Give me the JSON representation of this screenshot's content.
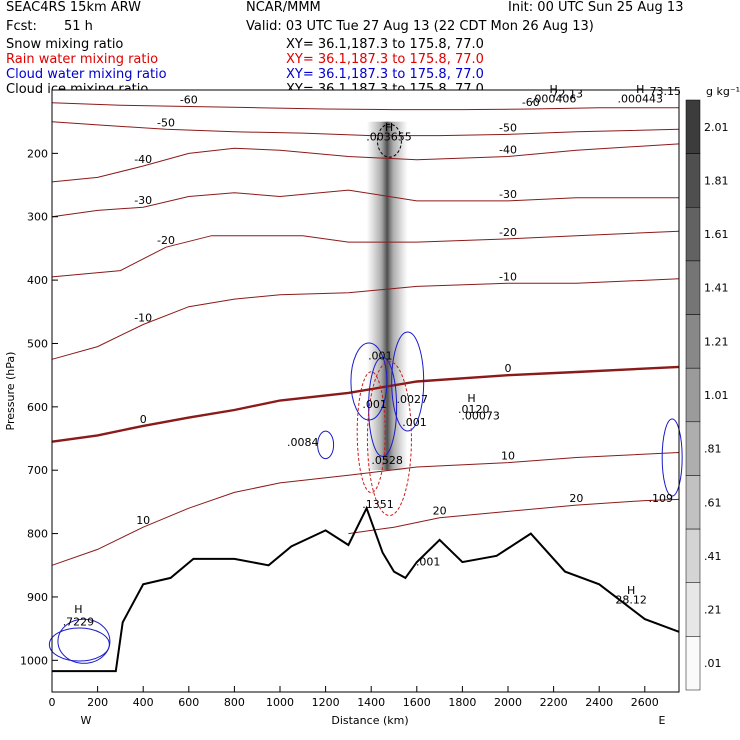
{
  "header": {
    "model": "SEAC4RS 15km ARW",
    "center": "NCAR/MMM",
    "init": "Init: 00 UTC Sun 25 Aug 13",
    "fcst_label": "Fcst:",
    "fcst_value": "51 h",
    "valid": "Valid: 03 UTC Tue 27 Aug 13 (22 CDT Mon 26 Aug 13)"
  },
  "fields": [
    {
      "label": "Snow mixing ratio",
      "xy": "XY=   36.1,187.3 to 175.8, 77.0",
      "color": "#000000"
    },
    {
      "label": "Rain water mixing ratio",
      "xy": "XY=   36.1,187.3 to 175.8, 77.0",
      "color": "#e00000"
    },
    {
      "label": "Cloud water mixing ratio",
      "xy": "XY=   36.1,187.3 to 175.8, 77.0",
      "color": "#0000d0"
    },
    {
      "label": "Cloud ice mixing ratio",
      "xy": "XY=   36.1,187.3 to 175.8, 77.0",
      "color": "#000000"
    }
  ],
  "chart_data": {
    "type": "heatmap",
    "xlabel": "Distance (km)",
    "ylabel": "Pressure (hPa)",
    "xlim": [
      0,
      2750
    ],
    "ylim": [
      1050,
      100
    ],
    "x_ticks": [
      0,
      200,
      400,
      600,
      800,
      1000,
      1200,
      1400,
      1600,
      1800,
      2000,
      2200,
      2400,
      2600
    ],
    "y_ticks": [
      200,
      300,
      400,
      500,
      600,
      700,
      800,
      900,
      1000
    ],
    "x_end_labels": {
      "left": "W",
      "right": "E"
    },
    "colorbar": {
      "unit": "g kg⁻¹",
      "levels": [
        "2.01",
        "1.81",
        "1.61",
        "1.41",
        "1.21",
        "1.01",
        ".81",
        ".61",
        ".41",
        ".21",
        ".01"
      ]
    },
    "temperature_contours": [
      {
        "label": "-60",
        "points": [
          [
            0,
            120
          ],
          [
            300,
            124
          ],
          [
            600,
            126
          ],
          [
            900,
            128
          ],
          [
            1200,
            130
          ],
          [
            1500,
            131
          ],
          [
            1800,
            131
          ],
          [
            2100,
            130
          ],
          [
            2400,
            128
          ],
          [
            2750,
            128
          ]
        ]
      },
      {
        "label": "-50",
        "points": [
          [
            0,
            150
          ],
          [
            200,
            155
          ],
          [
            500,
            162
          ],
          [
            800,
            166
          ],
          [
            1100,
            168
          ],
          [
            1400,
            172
          ],
          [
            1700,
            172
          ],
          [
            2000,
            170
          ],
          [
            2300,
            166
          ],
          [
            2750,
            162
          ]
        ]
      },
      {
        "label": "-40",
        "points": [
          [
            0,
            245
          ],
          [
            200,
            238
          ],
          [
            400,
            220
          ],
          [
            600,
            200
          ],
          [
            800,
            192
          ],
          [
            1000,
            195
          ],
          [
            1300,
            205
          ],
          [
            1600,
            210
          ],
          [
            2000,
            205
          ],
          [
            2300,
            195
          ],
          [
            2750,
            185
          ]
        ]
      },
      {
        "label": "-30",
        "points": [
          [
            0,
            300
          ],
          [
            200,
            290
          ],
          [
            400,
            285
          ],
          [
            600,
            268
          ],
          [
            800,
            262
          ],
          [
            1000,
            268
          ],
          [
            1300,
            258
          ],
          [
            1600,
            275
          ],
          [
            2000,
            275
          ],
          [
            2300,
            270
          ],
          [
            2750,
            270
          ]
        ]
      },
      {
        "label": "-20",
        "points": [
          [
            0,
            395
          ],
          [
            300,
            385
          ],
          [
            500,
            348
          ],
          [
            700,
            330
          ],
          [
            900,
            330
          ],
          [
            1100,
            330
          ],
          [
            1300,
            340
          ],
          [
            1600,
            340
          ],
          [
            2000,
            335
          ],
          [
            2300,
            330
          ],
          [
            2750,
            323
          ]
        ]
      },
      {
        "label": "-10",
        "points": [
          [
            0,
            525
          ],
          [
            200,
            505
          ],
          [
            400,
            470
          ],
          [
            600,
            442
          ],
          [
            800,
            430
          ],
          [
            1000,
            423
          ],
          [
            1300,
            420
          ],
          [
            1600,
            410
          ],
          [
            2000,
            405
          ],
          [
            2300,
            405
          ],
          [
            2750,
            398
          ]
        ]
      },
      {
        "label": "0",
        "points": [
          [
            0,
            655
          ],
          [
            200,
            645
          ],
          [
            400,
            630
          ],
          [
            600,
            617
          ],
          [
            800,
            605
          ],
          [
            1000,
            590
          ],
          [
            1300,
            578
          ],
          [
            1600,
            560
          ],
          [
            2000,
            550
          ],
          [
            2300,
            545
          ],
          [
            2750,
            537
          ]
        ]
      },
      {
        "label": "10",
        "points": [
          [
            0,
            850
          ],
          [
            200,
            825
          ],
          [
            400,
            790
          ],
          [
            600,
            760
          ],
          [
            800,
            735
          ],
          [
            1000,
            720
          ],
          [
            1300,
            708
          ],
          [
            1600,
            695
          ],
          [
            2000,
            688
          ],
          [
            2300,
            680
          ],
          [
            2750,
            672
          ]
        ]
      },
      {
        "label": "20",
        "points": [
          [
            1300,
            800
          ],
          [
            1500,
            790
          ],
          [
            1700,
            775
          ],
          [
            2000,
            765
          ],
          [
            2300,
            755
          ],
          [
            2600,
            748
          ],
          [
            2750,
            746
          ]
        ]
      }
    ],
    "terrain": [
      [
        0,
        1017
      ],
      [
        280,
        1017
      ],
      [
        310,
        940
      ],
      [
        400,
        880
      ],
      [
        520,
        870
      ],
      [
        620,
        840
      ],
      [
        800,
        840
      ],
      [
        950,
        850
      ],
      [
        1050,
        820
      ],
      [
        1200,
        795
      ],
      [
        1300,
        818
      ],
      [
        1380,
        760
      ],
      [
        1450,
        830
      ],
      [
        1500,
        860
      ],
      [
        1550,
        870
      ],
      [
        1600,
        845
      ],
      [
        1700,
        810
      ],
      [
        1800,
        845
      ],
      [
        1950,
        835
      ],
      [
        2100,
        800
      ],
      [
        2250,
        860
      ],
      [
        2400,
        880
      ],
      [
        2600,
        935
      ],
      [
        2750,
        955
      ]
    ],
    "annotations": [
      {
        "text": "H",
        "x": 1478,
        "y": 165
      },
      {
        "text": ".003655",
        "x": 1478,
        "y": 180
      },
      {
        "text": "H",
        "x": 2200,
        "y": 105
      },
      {
        "text": ".000406",
        "x": 2200,
        "y": 120
      },
      {
        "text": "H",
        "x": 2580,
        "y": 105
      },
      {
        "text": ".000443",
        "x": 2580,
        "y": 120
      },
      {
        "text": "72.13",
        "x": 2260,
        "y": 112
      },
      {
        "text": "73.15",
        "x": 2690,
        "y": 108
      },
      {
        "text": "H",
        "x": 116,
        "y": 925
      },
      {
        "text": ".7229",
        "x": 116,
        "y": 945
      },
      {
        "text": ".0084",
        "x": 1100,
        "y": 662
      },
      {
        "text": ".001",
        "x": 1440,
        "y": 525
      },
      {
        "text": ".001",
        "x": 1415,
        "y": 602
      },
      {
        "text": ".0027",
        "x": 1580,
        "y": 594
      },
      {
        "text": ".001",
        "x": 1590,
        "y": 630
      },
      {
        "text": ".0528",
        "x": 1470,
        "y": 690
      },
      {
        "text": ".1351",
        "x": 1430,
        "y": 760
      },
      {
        "text": "H",
        "x": 1840,
        "y": 592
      },
      {
        "text": ".0120",
        "x": 1850,
        "y": 610
      },
      {
        "text": ".00073",
        "x": 1880,
        "y": 620
      },
      {
        "text": ".109",
        "x": 2670,
        "y": 750
      },
      {
        "text": "H",
        "x": 2540,
        "y": 895
      },
      {
        "text": "28.12",
        "x": 2540,
        "y": 910
      },
      {
        "text": ".001",
        "x": 1650,
        "y": 850
      }
    ]
  }
}
